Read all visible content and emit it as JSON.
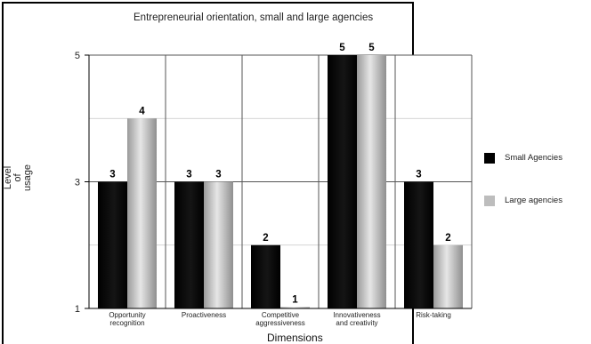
{
  "chart_data": {
    "type": "bar",
    "title": "Entrepreneurial orientation, small and large agencies",
    "xlabel": "Dimensions",
    "ylabel_lines": [
      "Level",
      "of",
      "usage"
    ],
    "ylim": [
      1,
      5
    ],
    "yticks": [
      1,
      3,
      5
    ],
    "grid": true,
    "legend_position": "right",
    "categories": [
      [
        "Opportunity",
        "recognition"
      ],
      [
        "Proactiveness"
      ],
      [
        "Competitive",
        "aggressiveness"
      ],
      [
        "Innovativeness",
        "and creativity"
      ],
      [
        "Risk-taking"
      ]
    ],
    "series": [
      {
        "name": "Small Agencies",
        "color": "#000000",
        "values": [
          3,
          3,
          2,
          5,
          3
        ]
      },
      {
        "name": "Large agencies",
        "color": "#bdbdbd",
        "values": [
          4,
          3,
          1,
          5,
          2
        ]
      }
    ]
  }
}
